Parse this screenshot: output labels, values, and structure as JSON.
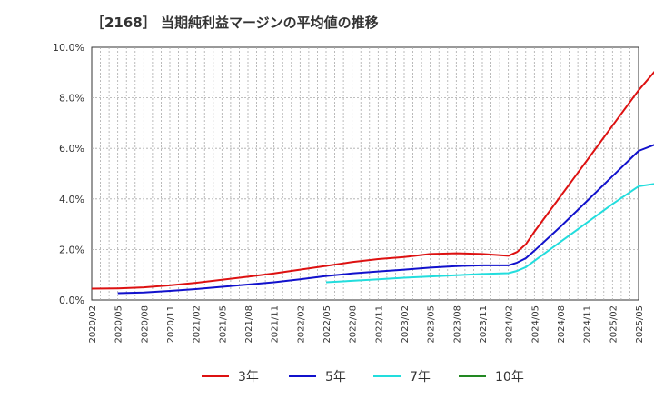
{
  "chart_data": {
    "type": "line",
    "title": "［2168］ 当期純利益マージンの平均値の推移",
    "xlabel": "",
    "ylabel": "",
    "ylim": [
      0,
      10
    ],
    "y_unit": "%",
    "y_ticks": [
      "0.0%",
      "2.0%",
      "4.0%",
      "6.0%",
      "8.0%",
      "10.0%"
    ],
    "x_ticks": [
      "2020/02",
      "2020/05",
      "2020/08",
      "2020/11",
      "2021/02",
      "2021/05",
      "2021/08",
      "2021/11",
      "2022/02",
      "2022/05",
      "2022/08",
      "2022/11",
      "2023/02",
      "2023/05",
      "2023/08",
      "2023/11",
      "2024/02",
      "2024/05",
      "2024/08",
      "2024/11",
      "2025/02",
      "2025/05"
    ],
    "grid": true,
    "legend_position": "bottom",
    "series": [
      {
        "name": "3年",
        "color": "#dd1111",
        "points": [
          [
            "2020/02",
            0.45
          ],
          [
            "2020/05",
            0.46
          ],
          [
            "2020/08",
            0.5
          ],
          [
            "2020/11",
            0.58
          ],
          [
            "2021/02",
            0.68
          ],
          [
            "2021/05",
            0.8
          ],
          [
            "2021/08",
            0.92
          ],
          [
            "2021/11",
            1.05
          ],
          [
            "2022/02",
            1.2
          ],
          [
            "2022/05",
            1.35
          ],
          [
            "2022/08",
            1.5
          ],
          [
            "2022/11",
            1.62
          ],
          [
            "2023/02",
            1.7
          ],
          [
            "2023/05",
            1.82
          ],
          [
            "2023/08",
            1.85
          ],
          [
            "2023/11",
            1.82
          ],
          [
            "2024/02",
            1.75
          ],
          [
            "2024/03",
            1.9
          ],
          [
            "2024/04",
            2.2
          ],
          [
            "2024/05",
            2.7
          ],
          [
            "2024/08",
            4.1
          ],
          [
            "2024/11",
            5.5
          ],
          [
            "2025/02",
            6.9
          ],
          [
            "2025/05",
            8.3
          ],
          [
            "2025/08",
            9.5
          ]
        ]
      },
      {
        "name": "5年",
        "color": "#1111cc",
        "points": [
          [
            "2020/05",
            0.27
          ],
          [
            "2020/08",
            0.3
          ],
          [
            "2020/11",
            0.36
          ],
          [
            "2021/02",
            0.43
          ],
          [
            "2021/05",
            0.52
          ],
          [
            "2021/08",
            0.61
          ],
          [
            "2021/11",
            0.7
          ],
          [
            "2022/02",
            0.82
          ],
          [
            "2022/05",
            0.95
          ],
          [
            "2022/08",
            1.05
          ],
          [
            "2022/11",
            1.13
          ],
          [
            "2023/02",
            1.2
          ],
          [
            "2023/05",
            1.28
          ],
          [
            "2023/08",
            1.34
          ],
          [
            "2023/11",
            1.37
          ],
          [
            "2024/02",
            1.37
          ],
          [
            "2024/03",
            1.48
          ],
          [
            "2024/04",
            1.65
          ],
          [
            "2024/05",
            1.95
          ],
          [
            "2024/08",
            2.9
          ],
          [
            "2024/11",
            3.9
          ],
          [
            "2025/02",
            4.9
          ],
          [
            "2025/05",
            5.9
          ],
          [
            "2025/08",
            6.3
          ]
        ]
      },
      {
        "name": "7年",
        "color": "#22dddd",
        "points": [
          [
            "2022/05",
            0.7
          ],
          [
            "2022/08",
            0.76
          ],
          [
            "2022/11",
            0.82
          ],
          [
            "2023/02",
            0.88
          ],
          [
            "2023/05",
            0.93
          ],
          [
            "2023/08",
            0.98
          ],
          [
            "2023/11",
            1.03
          ],
          [
            "2024/02",
            1.06
          ],
          [
            "2024/03",
            1.15
          ],
          [
            "2024/04",
            1.3
          ],
          [
            "2024/05",
            1.55
          ],
          [
            "2024/08",
            2.3
          ],
          [
            "2024/11",
            3.05
          ],
          [
            "2025/02",
            3.8
          ],
          [
            "2025/05",
            4.5
          ],
          [
            "2025/08",
            4.65
          ]
        ]
      },
      {
        "name": "10年",
        "color": "#228822",
        "points": []
      }
    ]
  }
}
